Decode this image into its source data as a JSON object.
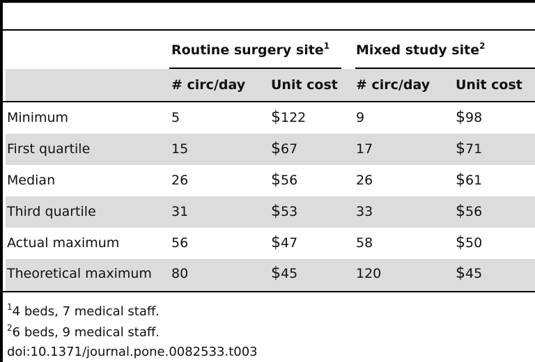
{
  "table": {
    "group_headers": [
      {
        "label": "Routine surgery site",
        "note": "1"
      },
      {
        "label": "Mixed study site",
        "note": "2"
      }
    ],
    "column_headers": [
      "# circ/day",
      "Unit cost",
      "# circ/day",
      "Unit cost"
    ],
    "rows": [
      {
        "label": "Minimum",
        "routine_circ": "5",
        "routine_cost": "$122",
        "mixed_circ": "9",
        "mixed_cost": "$98"
      },
      {
        "label": "First quartile",
        "routine_circ": "15",
        "routine_cost": "$67",
        "mixed_circ": "17",
        "mixed_cost": "$71"
      },
      {
        "label": "Median",
        "routine_circ": "26",
        "routine_cost": "$56",
        "mixed_circ": "26",
        "mixed_cost": "$61"
      },
      {
        "label": "Third quartile",
        "routine_circ": "31",
        "routine_cost": "$53",
        "mixed_circ": "33",
        "mixed_cost": "$56"
      },
      {
        "label": "Actual maximum",
        "routine_circ": "56",
        "routine_cost": "$47",
        "mixed_circ": "58",
        "mixed_cost": "$50"
      },
      {
        "label": "Theoretical maximum",
        "routine_circ": "80",
        "routine_cost": "$45",
        "mixed_circ": "120",
        "mixed_cost": "$45"
      }
    ],
    "striped_fill": "#dcdcdc"
  },
  "footnotes": [
    {
      "mark": "1",
      "text": "4 beds, 7 medical staff."
    },
    {
      "mark": "2",
      "text": "6 beds, 9 medical staff."
    }
  ],
  "doi": "doi:10.1371/journal.pone.0082533.t003"
}
